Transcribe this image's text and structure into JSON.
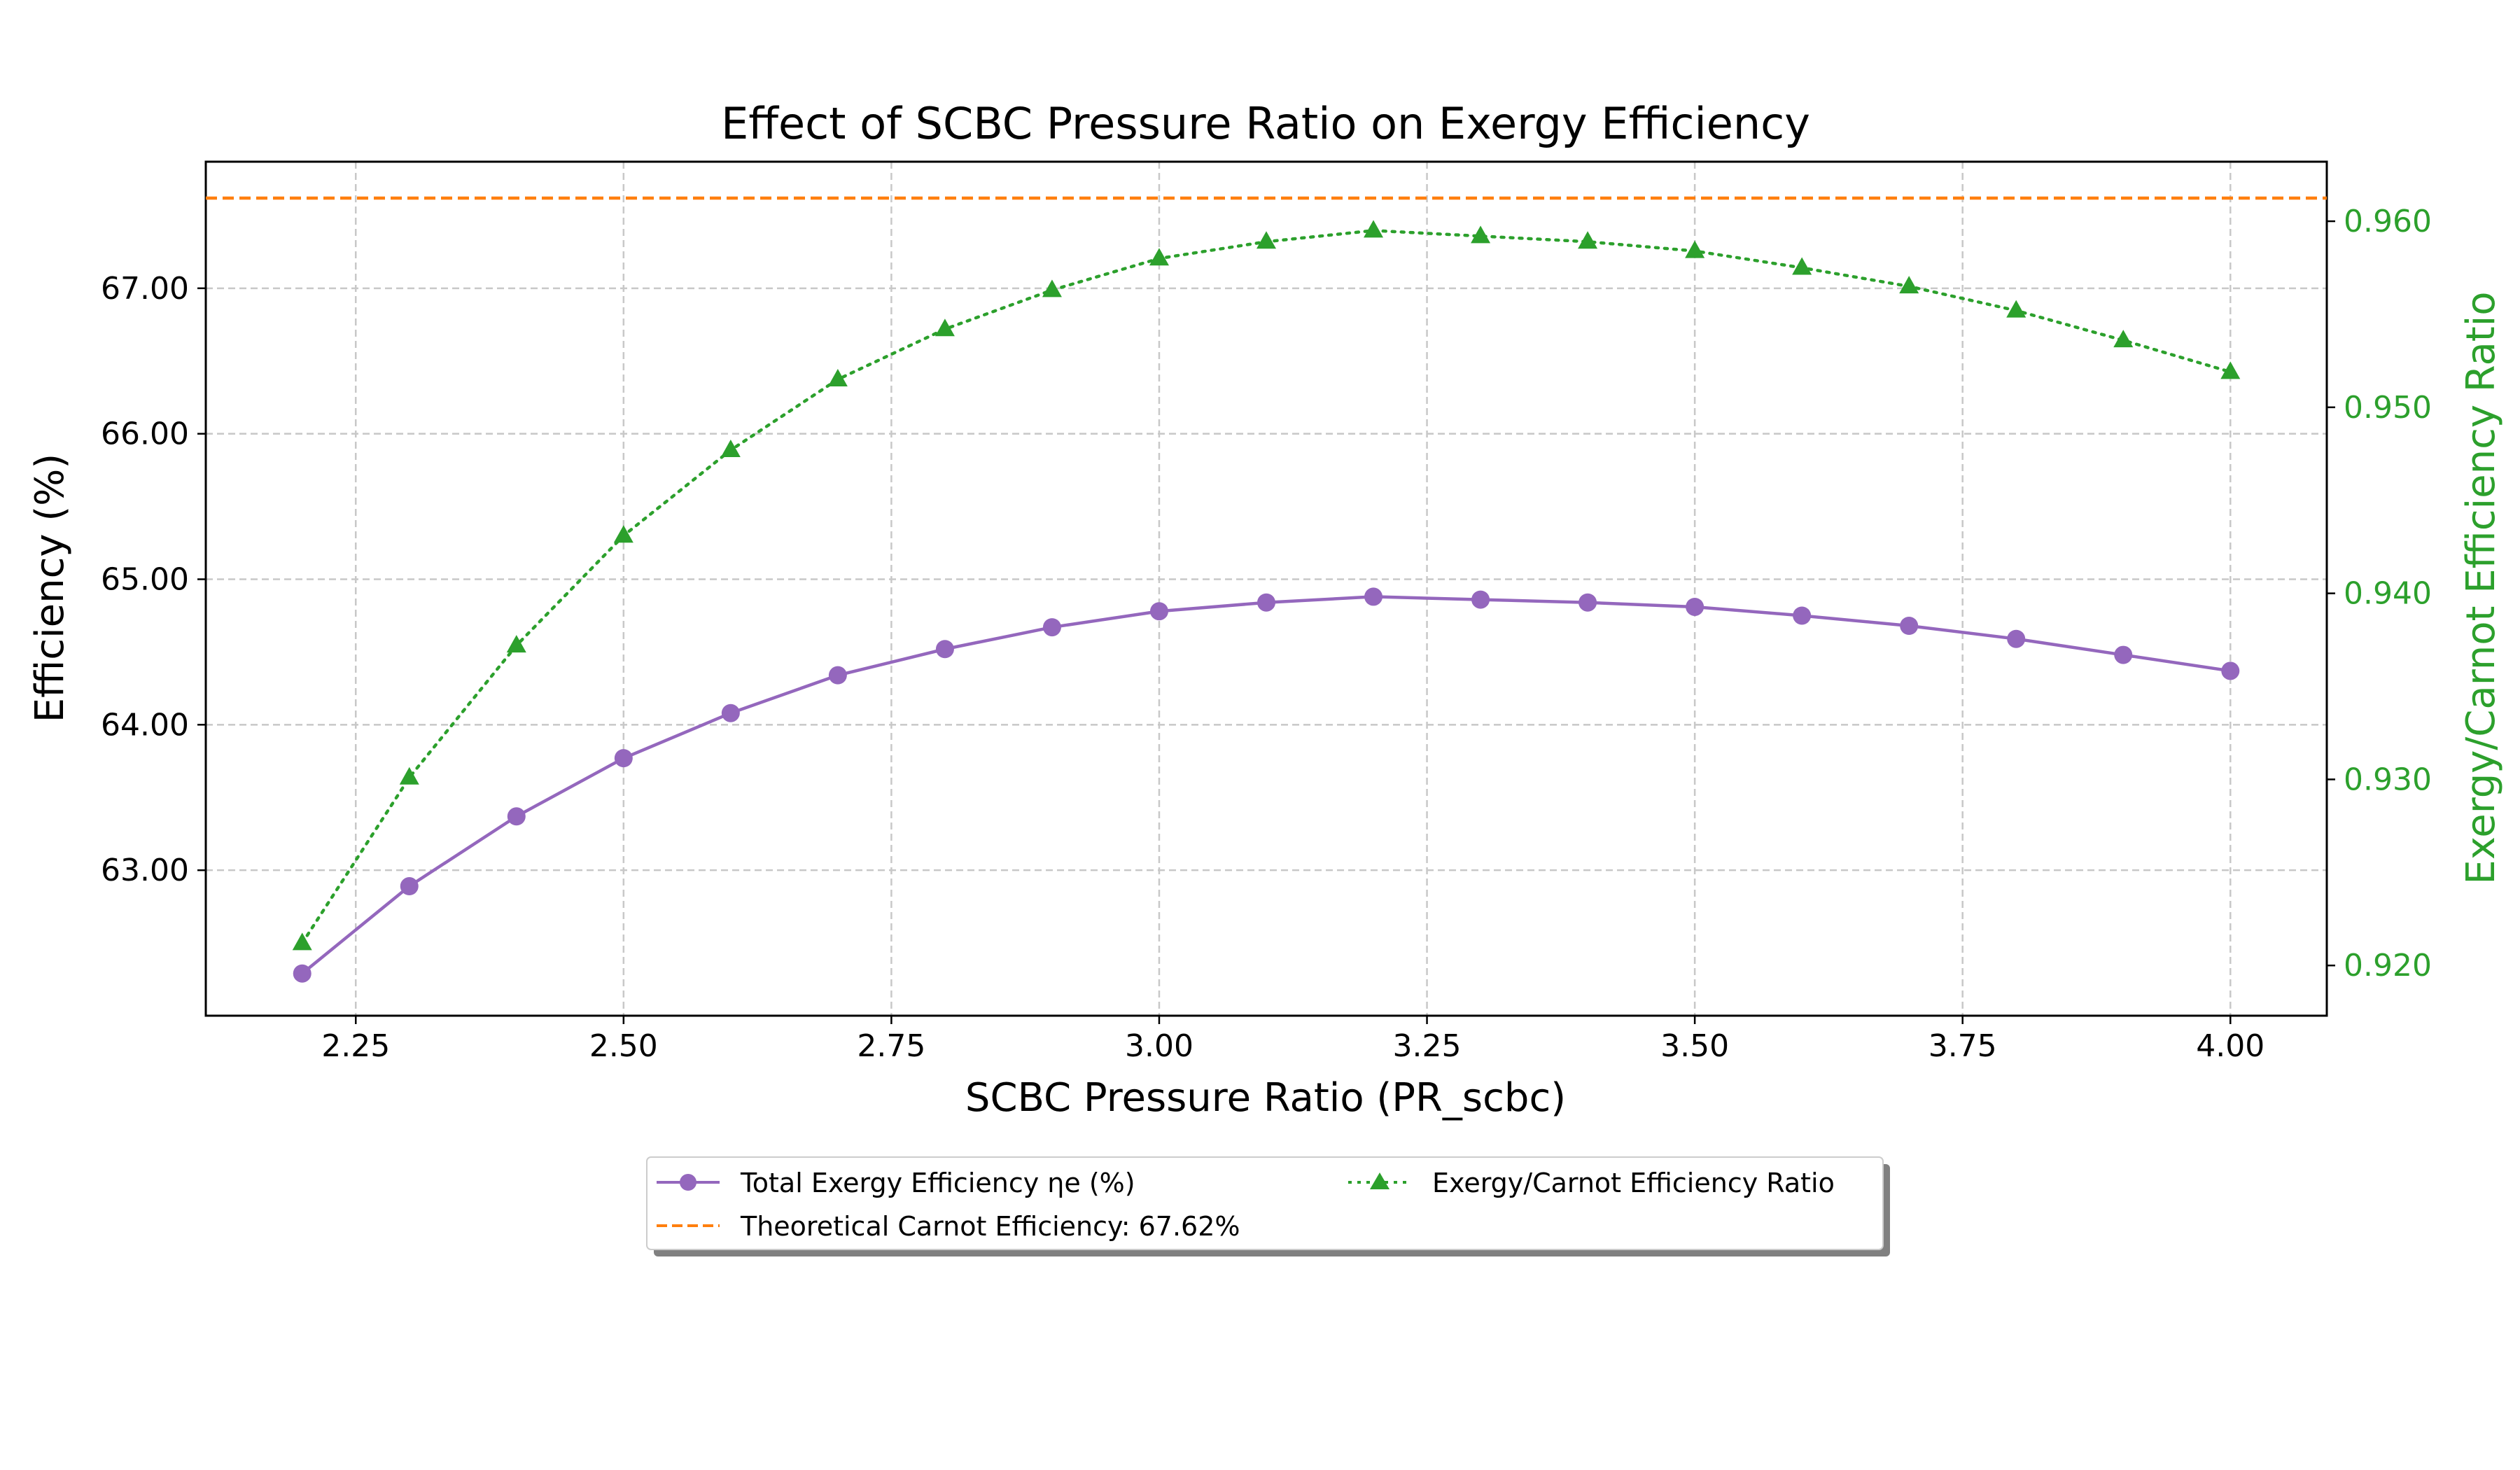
{
  "chart_data": {
    "type": "line",
    "title": "Effect of SCBC Pressure Ratio on Exergy Efficiency",
    "xlabel": "SCBC Pressure Ratio (PR_scbc)",
    "ylabel_left": "Efficiency (%)",
    "ylabel_right": "Exergy/Carnot Efficiency Ratio",
    "xlim": [
      2.11,
      4.09
    ],
    "ylim_left": [
      62.0,
      67.87
    ],
    "ylim_right": [
      0.9173,
      0.9632
    ],
    "x_ticks": [
      "2.25",
      "2.50",
      "2.75",
      "3.00",
      "3.25",
      "3.50",
      "3.75",
      "4.00"
    ],
    "y_ticks_left": [
      "63.00",
      "64.00",
      "65.00",
      "66.00",
      "67.00"
    ],
    "y_ticks_right": [
      "0.920",
      "0.930",
      "0.940",
      "0.950",
      "0.960"
    ],
    "grid": true,
    "legend_position": "bottom-center, below axes",
    "x": [
      2.2,
      2.3,
      2.4,
      2.5,
      2.6,
      2.7,
      2.8,
      2.9,
      3.0,
      3.1,
      3.2,
      3.3,
      3.4,
      3.5,
      3.6,
      3.7,
      3.8,
      3.9,
      4.0
    ],
    "series": [
      {
        "name": "Total Exergy Efficiency ηe (%)",
        "axis": "left",
        "color": "#9467bd",
        "style": "solid",
        "marker": "circle",
        "values": [
          62.29,
          62.89,
          63.37,
          63.77,
          64.08,
          64.34,
          64.52,
          64.67,
          64.78,
          64.84,
          64.88,
          64.86,
          64.84,
          64.81,
          64.75,
          64.68,
          64.59,
          64.48,
          64.37
        ]
      },
      {
        "name": "Theoretical Carnot Efficiency: 67.62%",
        "axis": "left",
        "color": "#ff7f0e",
        "style": "dashed",
        "marker": "none",
        "constant": 67.62
      },
      {
        "name": "Exergy/Carnot Efficiency Ratio",
        "axis": "right",
        "color": "#2ca02c",
        "style": "dotted",
        "marker": "triangle",
        "values": [
          0.9212,
          0.9301,
          0.9372,
          0.9431,
          0.9477,
          0.9515,
          0.9542,
          0.9563,
          0.958,
          0.9589,
          0.9595,
          0.9592,
          0.9589,
          0.9584,
          0.9575,
          0.9565,
          0.9552,
          0.9536,
          0.9519
        ]
      }
    ]
  },
  "colors": {
    "axis_right_text": "#2ca02c",
    "grid": "#c8c8c8"
  }
}
